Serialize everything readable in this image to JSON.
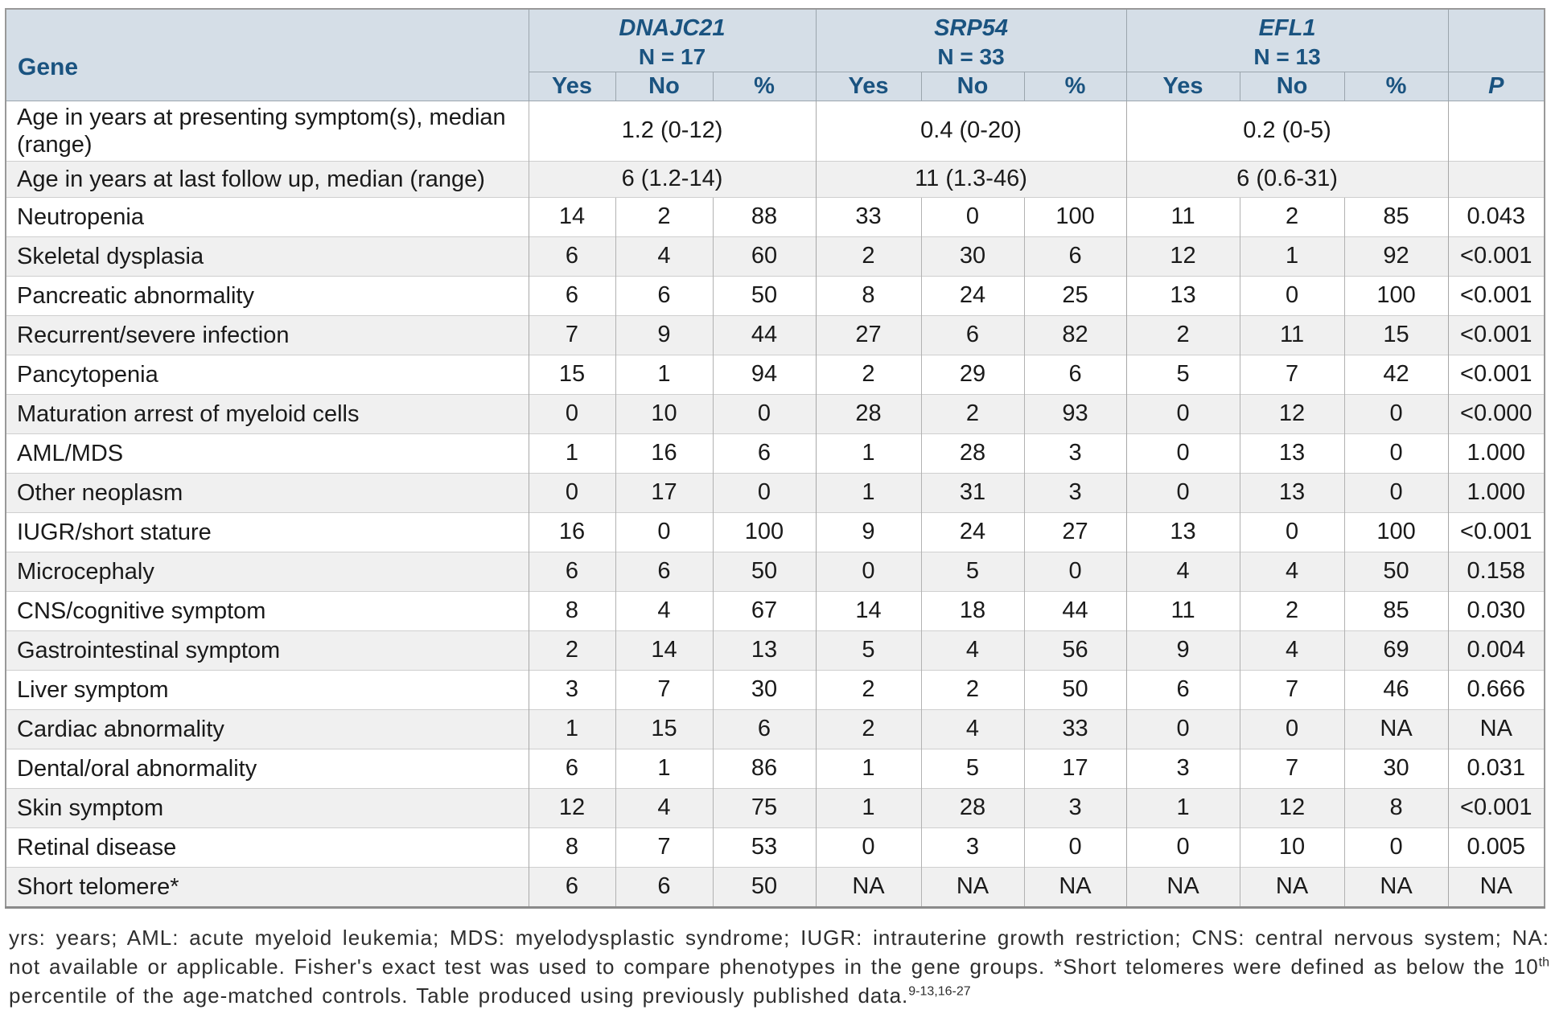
{
  "table": {
    "gene_header": "Gene",
    "groups": [
      {
        "name": "DNAJC21",
        "n": "N = 17"
      },
      {
        "name": "SRP54",
        "n": "N = 33"
      },
      {
        "name": "EFL1",
        "n": "N = 13"
      }
    ],
    "sub_headers": [
      "Yes",
      "No",
      "%"
    ],
    "p_header": "P",
    "age_rows": [
      {
        "label": "Age in years at presenting symptom(s), median (range)",
        "values": [
          "1.2 (0-12)",
          "0.4 (0-20)",
          "0.2 (0-5)"
        ],
        "p": ""
      },
      {
        "label": "Age in years at last follow up, median (range)",
        "values": [
          "6 (1.2-14)",
          "11 (1.3-46)",
          "6 (0.6-31)"
        ],
        "p": ""
      }
    ],
    "rows": [
      {
        "label": "Neutropenia",
        "values": [
          "14",
          "2",
          "88",
          "33",
          "0",
          "100",
          "11",
          "2",
          "85"
        ],
        "p": "0.043"
      },
      {
        "label": "Skeletal dysplasia",
        "values": [
          "6",
          "4",
          "60",
          "2",
          "30",
          "6",
          "12",
          "1",
          "92"
        ],
        "p": "<0.001"
      },
      {
        "label": "Pancreatic abnormality",
        "values": [
          "6",
          "6",
          "50",
          "8",
          "24",
          "25",
          "13",
          "0",
          "100"
        ],
        "p": "<0.001"
      },
      {
        "label": "Recurrent/severe infection",
        "values": [
          "7",
          "9",
          "44",
          "27",
          "6",
          "82",
          "2",
          "11",
          "15"
        ],
        "p": "<0.001"
      },
      {
        "label": "Pancytopenia",
        "values": [
          "15",
          "1",
          "94",
          "2",
          "29",
          "6",
          "5",
          "7",
          "42"
        ],
        "p": "<0.001"
      },
      {
        "label": "Maturation arrest of myeloid cells",
        "values": [
          "0",
          "10",
          "0",
          "28",
          "2",
          "93",
          "0",
          "12",
          "0"
        ],
        "p": "<0.000"
      },
      {
        "label": "AML/MDS",
        "values": [
          "1",
          "16",
          "6",
          "1",
          "28",
          "3",
          "0",
          "13",
          "0"
        ],
        "p": "1.000"
      },
      {
        "label": "Other neoplasm",
        "values": [
          "0",
          "17",
          "0",
          "1",
          "31",
          "3",
          "0",
          "13",
          "0"
        ],
        "p": "1.000"
      },
      {
        "label": "IUGR/short stature",
        "values": [
          "16",
          "0",
          "100",
          "9",
          "24",
          "27",
          "13",
          "0",
          "100"
        ],
        "p": "<0.001"
      },
      {
        "label": "Microcephaly",
        "values": [
          "6",
          "6",
          "50",
          "0",
          "5",
          "0",
          "4",
          "4",
          "50"
        ],
        "p": "0.158"
      },
      {
        "label": "CNS/cognitive symptom",
        "values": [
          "8",
          "4",
          "67",
          "14",
          "18",
          "44",
          "11",
          "2",
          "85"
        ],
        "p": "0.030"
      },
      {
        "label": "Gastrointestinal symptom",
        "values": [
          "2",
          "14",
          "13",
          "5",
          "4",
          "56",
          "9",
          "4",
          "69"
        ],
        "p": "0.004"
      },
      {
        "label": "Liver symptom",
        "values": [
          "3",
          "7",
          "30",
          "2",
          "2",
          "50",
          "6",
          "7",
          "46"
        ],
        "p": "0.666"
      },
      {
        "label": "Cardiac abnormality",
        "values": [
          "1",
          "15",
          "6",
          "2",
          "4",
          "33",
          "0",
          "0",
          "NA"
        ],
        "p": "NA"
      },
      {
        "label": "Dental/oral abnormality",
        "values": [
          "6",
          "1",
          "86",
          "1",
          "5",
          "17",
          "3",
          "7",
          "30"
        ],
        "p": "0.031"
      },
      {
        "label": "Skin symptom",
        "values": [
          "12",
          "4",
          "75",
          "1",
          "28",
          "3",
          "1",
          "12",
          "8"
        ],
        "p": "<0.001"
      },
      {
        "label": "Retinal disease",
        "values": [
          "8",
          "7",
          "53",
          "0",
          "3",
          "0",
          "0",
          "10",
          "0"
        ],
        "p": "0.005"
      },
      {
        "label": "Short telomere*",
        "values": [
          "6",
          "6",
          "50",
          "NA",
          "NA",
          "NA",
          "NA",
          "NA",
          "NA"
        ],
        "p": "NA"
      }
    ]
  },
  "footnote": {
    "segment_1": "yrs: years; AML: acute myeloid leukemia; MDS: myelodysplastic syndrome; IUGR: intrauterine growth restriction; CNS: central nervous system; NA: not available or applicable. Fisher's exact test was used to compare phenotypes in the gene groups. *Short telomeres were defined as below the 10",
    "superscript_1": "th",
    "segment_2": " percentile of the age-matched controls. Table produced using previously published data.",
    "superscript_2": "9-13,16-27"
  },
  "colors": {
    "header_bg": "#d5dee7",
    "header_text": "#1a5380",
    "row_alt_bg": "#f0f0f0",
    "border_outer": "#999999",
    "border_inner_v": "#b2b2b2",
    "border_inner_h": "#cfcfcf",
    "body_text": "#1a1a1a"
  }
}
